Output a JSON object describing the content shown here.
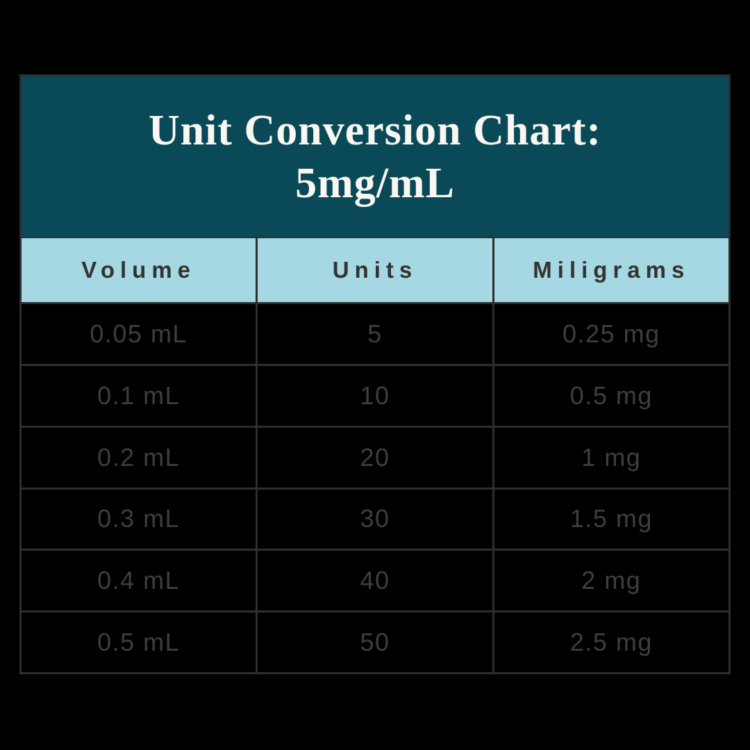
{
  "page": {
    "background": "#000000"
  },
  "table": {
    "title_lines": [
      "Unit Conversion Chart:",
      "5mg/mL"
    ],
    "columns": [
      "Volume",
      "Units",
      "Miligrams"
    ],
    "rows": [
      [
        "0.05 mL",
        "5",
        "0.25 mg"
      ],
      [
        "0.1 mL",
        "10",
        "0.5 mg"
      ],
      [
        "0.2 mL",
        "20",
        "1 mg"
      ],
      [
        "0.3 mL",
        "30",
        "1.5 mg"
      ],
      [
        "0.4 mL",
        "40",
        "2 mg"
      ],
      [
        "0.5 mL",
        "50",
        "2.5 mg"
      ]
    ],
    "colors": {
      "title_band_bg": "#0a4a58",
      "title_text": "#f9f7f2",
      "header_bg": "#a5d8e2",
      "header_text": "#333333",
      "body_bg": "#000000",
      "body_text": "#3e3e3e",
      "grid_border": "#2e2e2e"
    }
  },
  "chart_data": {
    "type": "table",
    "title": "Unit Conversion Chart: 5mg/mL",
    "concentration_mg_per_ml": 5,
    "columns": [
      "Volume",
      "Units",
      "Miligrams"
    ],
    "rows": [
      [
        "0.05 mL",
        5,
        "0.25 mg"
      ],
      [
        "0.1 mL",
        10,
        "0.5 mg"
      ],
      [
        "0.2 mL",
        20,
        "1 mg"
      ],
      [
        "0.3 mL",
        30,
        "1.5 mg"
      ],
      [
        "0.4 mL",
        40,
        "2 mg"
      ],
      [
        "0.5 mL",
        50,
        "2.5 mg"
      ]
    ]
  }
}
